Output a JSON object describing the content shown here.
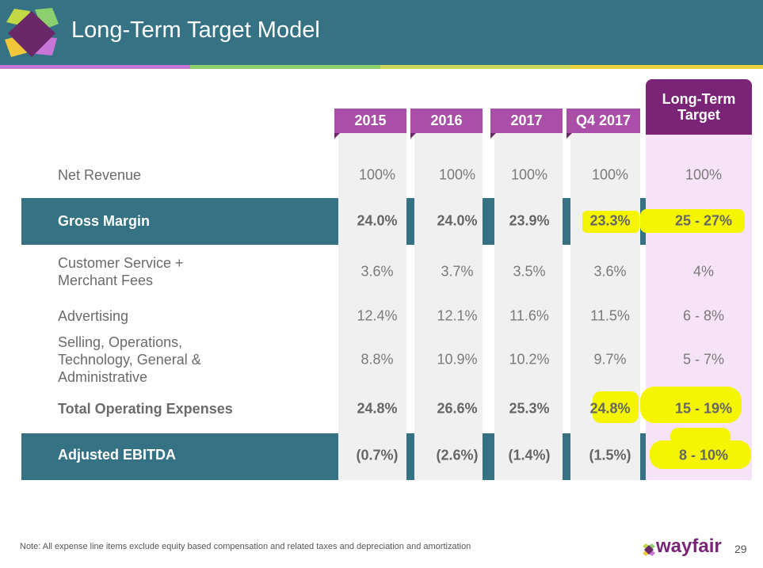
{
  "header": {
    "title": "Long-Term Target Model"
  },
  "columns": [
    "2015",
    "2016",
    "2017",
    "Q4 2017"
  ],
  "target_column": "Long-Term Target",
  "rows": [
    {
      "label": "Net Revenue",
      "values": [
        "100%",
        "100%",
        "100%",
        "100%"
      ],
      "target": "100%"
    },
    {
      "label": "Gross Margin",
      "values": [
        "24.0%",
        "24.0%",
        "23.9%",
        "23.3%"
      ],
      "target": "25 - 27%"
    },
    {
      "label": "Customer Service + Merchant Fees",
      "values": [
        "3.6%",
        "3.7%",
        "3.5%",
        "3.6%"
      ],
      "target": "4%"
    },
    {
      "label": "Advertising",
      "values": [
        "12.4%",
        "12.1%",
        "11.6%",
        "11.5%"
      ],
      "target": "6 - 8%"
    },
    {
      "label": "Selling, Operations, Technology, General & Administrative",
      "values": [
        "8.8%",
        "10.9%",
        "10.2%",
        "9.7%"
      ],
      "target": "5 - 7%"
    },
    {
      "label": "Total Operating Expenses",
      "values": [
        "24.8%",
        "26.6%",
        "25.3%",
        "24.8%"
      ],
      "target": "15 - 19%"
    },
    {
      "label": "Adjusted EBITDA",
      "values": [
        "(0.7%)",
        "(2.6%)",
        "(1.4%)",
        "(1.5%)"
      ],
      "target": "8 - 10%"
    }
  ],
  "footer": {
    "note": "Note: All expense line items exclude equity based compensation and related taxes and depreciation and amortization",
    "brand": "wayfair",
    "page": "29"
  },
  "colors": {
    "teal": "#357284",
    "purple": "#a94fa8",
    "dark_purple": "#7a2477",
    "highlight": "#f5f500"
  }
}
